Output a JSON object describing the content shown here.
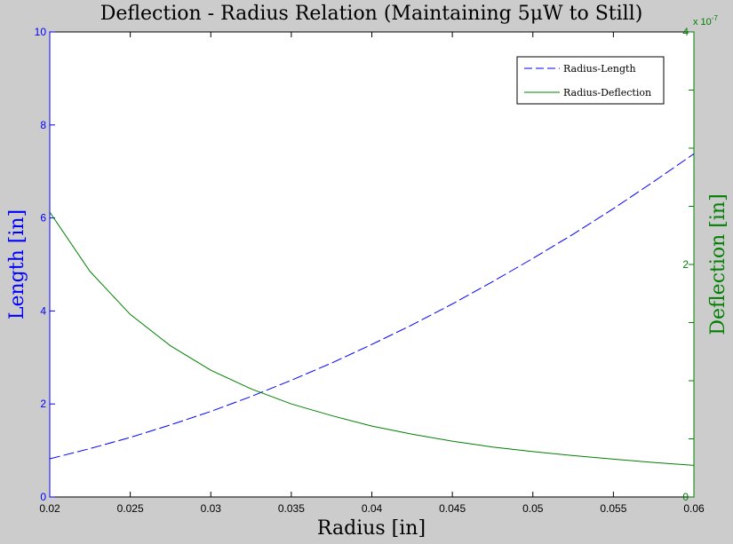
{
  "chart_data": {
    "type": "line",
    "title": "Deflection - Radius Relation (Maintaining 5μW to Still)",
    "xlabel": "Radius [in]",
    "ylabel_left": "Length [in]",
    "ylabel_right": "Deflection [in]",
    "right_axis_exponent": "x 10",
    "right_axis_exponent_power": "-7",
    "xlim": [
      0.02,
      0.06
    ],
    "ylim_left": [
      0,
      10
    ],
    "ylim_right": [
      0,
      4
    ],
    "x_ticks": [
      "0.02",
      "0.025",
      "0.03",
      "0.035",
      "0.04",
      "0.045",
      "0.05",
      "0.055",
      "0.06"
    ],
    "y_left_ticks": [
      "0",
      "2",
      "4",
      "6",
      "8",
      "10"
    ],
    "y_right_ticks": [
      "0",
      "2",
      "4"
    ],
    "grid": false,
    "legend_position": "top-right",
    "colors": {
      "left_axis": "#0000ff",
      "right_axis": "#008000",
      "series1": "#0000ff",
      "series2": "#008000"
    },
    "x": [
      0.02,
      0.0225,
      0.025,
      0.0275,
      0.03,
      0.0325,
      0.035,
      0.0375,
      0.04,
      0.0425,
      0.045,
      0.0475,
      0.05,
      0.0525,
      0.055,
      0.0575,
      0.06
    ],
    "series": [
      {
        "name": "Radius-Length",
        "axis": "left",
        "style": "dashed",
        "values": [
          0.82,
          1.04,
          1.28,
          1.55,
          1.84,
          2.16,
          2.51,
          2.88,
          3.28,
          3.7,
          4.15,
          4.63,
          5.13,
          5.65,
          6.2,
          6.78,
          7.38
        ]
      },
      {
        "name": "Radius-Deflection",
        "axis": "right",
        "style": "solid",
        "values": [
          2.45,
          1.94,
          1.57,
          1.3,
          1.09,
          0.93,
          0.8,
          0.7,
          0.61,
          0.54,
          0.48,
          0.43,
          0.39,
          0.356,
          0.325,
          0.297,
          0.272
        ]
      }
    ]
  }
}
